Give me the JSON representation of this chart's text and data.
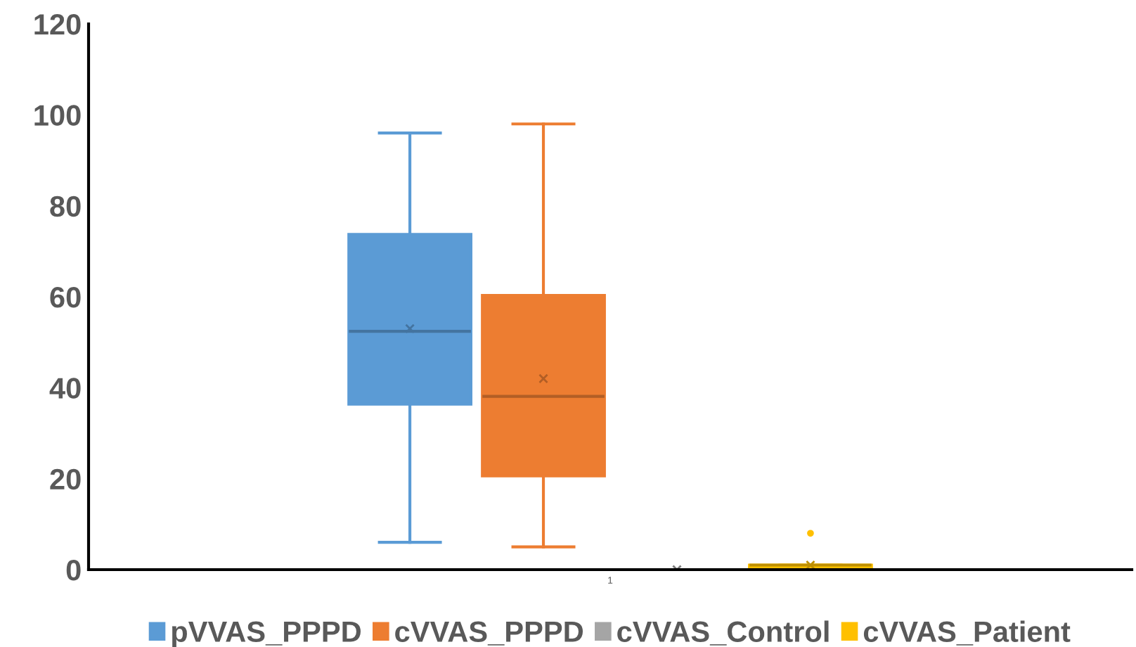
{
  "chart_data": {
    "type": "box",
    "categories": [
      "1"
    ],
    "ylim": [
      0,
      120
    ],
    "yticks": [
      0,
      20,
      40,
      60,
      80,
      100,
      120
    ],
    "grid": false,
    "legend": "bottom",
    "marker": "cross",
    "series": [
      {
        "name": "pVVAS_PPPD",
        "color": "#5b9bd5",
        "boxes": [
          {
            "low": 6,
            "q1": 36.4,
            "median": 52.4,
            "q3": 73.7,
            "high": 96,
            "mean": 53
          }
        ]
      },
      {
        "name": "cVVAS_PPPD",
        "color": "#ed7d31",
        "boxes": [
          {
            "low": 5,
            "q1": 20.6,
            "median": 38.1,
            "q3": 60.3,
            "high": 98,
            "mean": 42
          }
        ]
      },
      {
        "name": "cVVAS_Control",
        "color": "#a5a5a5",
        "boxes": [
          {
            "low": 0,
            "q1": 0,
            "median": 0,
            "q3": 0,
            "high": 0,
            "mean": 0
          }
        ]
      },
      {
        "name": "cVVAS_Patient",
        "color": "#ffc000",
        "boxes": [
          {
            "low": 0,
            "q1": 0,
            "median": 1,
            "q3": 1,
            "high": 1,
            "mean": 1,
            "outliers": [
              8
            ]
          }
        ]
      }
    ]
  }
}
